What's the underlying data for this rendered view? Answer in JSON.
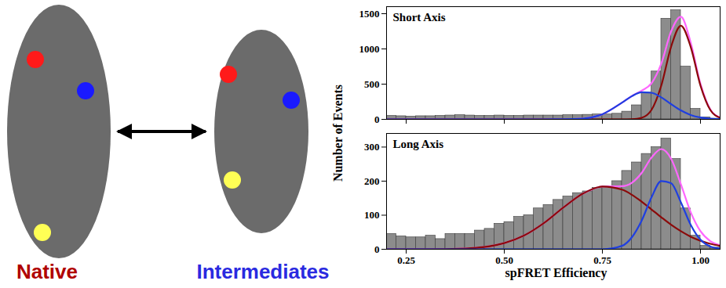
{
  "diagram": {
    "nodes": [
      {
        "label": "Native",
        "color": "#b00000"
      },
      {
        "label": "Intermediates",
        "color": "#2a2ae0"
      }
    ]
  },
  "figure": {
    "x_label": "spFRET Efficiency",
    "y_label": "Number of Events"
  },
  "chart_data": [
    {
      "type": "histogram",
      "title": "Short Axis",
      "color": "#8c8c8c",
      "tick_labels": "y",
      "bins": [
        0.2,
        0.225,
        0.25,
        0.275,
        0.3,
        0.325,
        0.35,
        0.375,
        0.4,
        0.425,
        0.45,
        0.475,
        0.5,
        0.525,
        0.55,
        0.575,
        0.6,
        0.625,
        0.65,
        0.675,
        0.7,
        0.725,
        0.75,
        0.775,
        0.8,
        0.825,
        0.85,
        0.875,
        0.9,
        0.925,
        0.95,
        0.975,
        1.0,
        1.025,
        1.05
      ],
      "counts": [
        50,
        45,
        40,
        45,
        45,
        50,
        55,
        60,
        55,
        50,
        50,
        55,
        50,
        50,
        55,
        55,
        55,
        55,
        60,
        60,
        65,
        70,
        70,
        80,
        110,
        200,
        380,
        680,
        1430,
        1550,
        750,
        150,
        30,
        10
      ],
      "xlim": [
        0.2,
        1.05
      ],
      "xticks": [
        0.25,
        {
          "value": 0.5,
          "label": "0.50"
        },
        0.75,
        {
          "value": 1.0,
          "label": "1.00"
        }
      ],
      "ylim": [
        0,
        1600
      ],
      "yticks": [
        0,
        500,
        1000,
        1500
      ],
      "series": [
        {
          "type": "line",
          "color": "#ff66ff",
          "x": [
            0.2,
            0.3,
            0.4,
            0.5,
            0.55,
            0.6,
            0.65,
            0.7,
            0.75,
            0.8,
            0.825,
            0.85,
            0.875,
            0.9,
            0.925,
            0.95,
            0.975,
            1.0,
            1.025,
            1.05
          ],
          "values": [
            0,
            0,
            0,
            0,
            0,
            0,
            1,
            11,
            73,
            237,
            331,
            407,
            511,
            790,
            1247,
            1457,
            1092,
            504,
            142,
            25
          ]
        },
        {
          "type": "line",
          "color": "#8b0a0a",
          "x": [
            0.2,
            0.3,
            0.4,
            0.5,
            0.55,
            0.6,
            0.65,
            0.7,
            0.75,
            0.8,
            0.825,
            0.85,
            0.875,
            0.9,
            0.925,
            0.95,
            0.975,
            1.0,
            1.025,
            1.05
          ],
          "values": [
            0,
            0,
            0,
            0,
            0,
            0,
            0,
            0,
            0,
            0,
            2,
            22,
            133,
            478,
            1030,
            1330,
            1030,
            478,
            133,
            22
          ]
        },
        {
          "type": "line",
          "color": "#1f3fe0",
          "x": [
            0.2,
            0.3,
            0.4,
            0.5,
            0.55,
            0.6,
            0.65,
            0.7,
            0.75,
            0.8,
            0.825,
            0.85,
            0.875,
            0.9,
            0.925,
            0.95,
            0.975,
            1.0,
            1.025,
            1.05
          ],
          "values": [
            0,
            0,
            0,
            0,
            0,
            0,
            1,
            11,
            73,
            237,
            329,
            385,
            378,
            312,
            217,
            127,
            62,
            26,
            9,
            3
          ]
        }
      ]
    },
    {
      "type": "histogram",
      "title": "Long Axis",
      "color": "#8c8c8c",
      "bins": [
        0.2,
        0.225,
        0.25,
        0.275,
        0.3,
        0.325,
        0.35,
        0.375,
        0.4,
        0.425,
        0.45,
        0.475,
        0.5,
        0.525,
        0.55,
        0.575,
        0.6,
        0.625,
        0.65,
        0.675,
        0.7,
        0.725,
        0.75,
        0.775,
        0.8,
        0.825,
        0.85,
        0.875,
        0.9,
        0.925,
        0.95,
        0.975,
        1.0,
        1.025,
        1.05
      ],
      "counts": [
        45,
        38,
        35,
        35,
        40,
        30,
        45,
        45,
        45,
        55,
        60,
        75,
        80,
        95,
        100,
        120,
        130,
        145,
        155,
        165,
        170,
        180,
        185,
        200,
        230,
        255,
        280,
        300,
        325,
        265,
        120,
        40,
        10,
        5
      ],
      "xlim": [
        0.2,
        1.05
      ],
      "xticks": [
        0.25,
        {
          "value": 0.5,
          "label": "0.50"
        },
        0.75,
        {
          "value": 1.0,
          "label": "1.00"
        }
      ],
      "ylim": [
        0,
        340
      ],
      "yticks": [
        0,
        100,
        200,
        300
      ],
      "series": [
        {
          "type": "line",
          "color": "#ff66ff",
          "x": [
            0.2,
            0.3,
            0.4,
            0.5,
            0.55,
            0.6,
            0.65,
            0.7,
            0.75,
            0.8,
            0.825,
            0.85,
            0.875,
            0.9,
            0.925,
            0.95,
            0.975,
            1.0,
            1.025,
            1.05
          ],
          "values": [
            0,
            0,
            2,
            18,
            40,
            76,
            122,
            163,
            184,
            185,
            195,
            224,
            269,
            294,
            266,
            191,
            109,
            53,
            24,
            12
          ]
        },
        {
          "type": "line",
          "color": "#8b0a0a",
          "x": [
            0.2,
            0.3,
            0.4,
            0.5,
            0.55,
            0.6,
            0.65,
            0.7,
            0.75,
            0.8,
            0.825,
            0.85,
            0.875,
            0.9,
            0.925,
            0.95,
            0.975,
            1.0,
            1.025,
            1.05
          ],
          "values": [
            0,
            0,
            2,
            18,
            40,
            76,
            122,
            163,
            184,
            175,
            160,
            140,
            117,
            94,
            72,
            53,
            37,
            25,
            16,
            10
          ]
        },
        {
          "type": "line",
          "color": "#1f3fe0",
          "x": [
            0.2,
            0.3,
            0.4,
            0.5,
            0.55,
            0.6,
            0.65,
            0.7,
            0.75,
            0.8,
            0.825,
            0.85,
            0.875,
            0.9,
            0.925,
            0.95,
            0.975,
            1.0,
            1.025,
            1.05
          ],
          "values": [
            0,
            0,
            0,
            0,
            0,
            0,
            0,
            0,
            0,
            10,
            35,
            84,
            152,
            200,
            194,
            138,
            72,
            28,
            8,
            2
          ]
        }
      ]
    }
  ]
}
